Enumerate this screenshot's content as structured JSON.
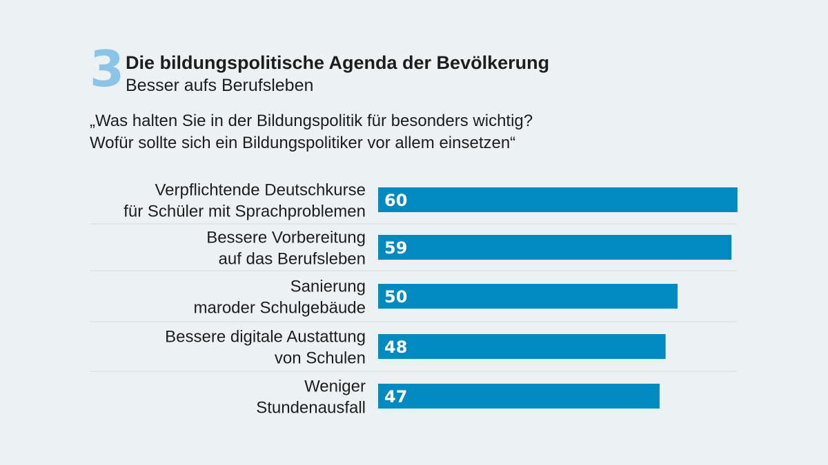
{
  "header": {
    "number": "3",
    "title": "Die bildungspolitische Agenda der Bevölkerung",
    "subtitle": "Besser aufs Berufsleben"
  },
  "question": {
    "line1": "„Was halten Sie in der Bildungspolitik für besonders wichtig?",
    "line2": "Wofür sollte sich ein Bildungspolitiker vor allem einsetzen“"
  },
  "colors": {
    "bar": "#008abf",
    "bar_label": "#ffffff",
    "number": "#8cc4e8",
    "background": "#ecf1f4",
    "divider": "#d3dde3"
  },
  "chart_data": {
    "type": "bar",
    "orientation": "horizontal",
    "categories": [
      [
        "Verpflichtende Deutschkurse",
        "für Schüler mit Sprachproblemen"
      ],
      [
        "Bessere Vorbereitung",
        "auf das Berufsleben"
      ],
      [
        "Sanierung",
        "maroder Schulgebäude"
      ],
      [
        "Bessere digitale Austattung",
        "von Schulen"
      ],
      [
        "Weniger",
        "Stundenausfall"
      ]
    ],
    "values": [
      60,
      59,
      50,
      48,
      47
    ],
    "data_labels": [
      "60",
      "59",
      "50",
      "48",
      "47"
    ],
    "grid": false
  }
}
